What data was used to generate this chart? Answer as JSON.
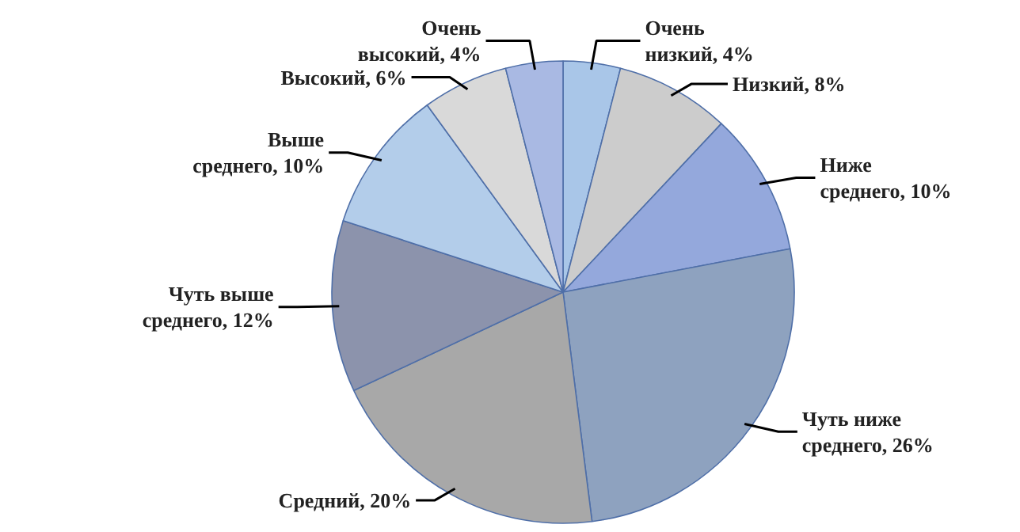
{
  "chart_data": {
    "type": "pie",
    "categories": [
      "Очень низкий",
      "Низкий",
      "Ниже среднего",
      "Чуть ниже среднего",
      "Средний",
      "Чуть выше среднего",
      "Выше среднего",
      "Высокий",
      "Очень высокий"
    ],
    "values": [
      4,
      8,
      10,
      26,
      20,
      12,
      10,
      6,
      4
    ],
    "value_labels": [
      "4%",
      "8%",
      "10%",
      "26%",
      "20%",
      "12%",
      "10%",
      "6%",
      "4%"
    ],
    "colors": [
      "#a9c6e8",
      "#cccccc",
      "#94a8dc",
      "#8ea2bf",
      "#a8a8a8",
      "#8c93ac",
      "#b3cdea",
      "#d9d9d9",
      "#a9b9e3"
    ]
  }
}
